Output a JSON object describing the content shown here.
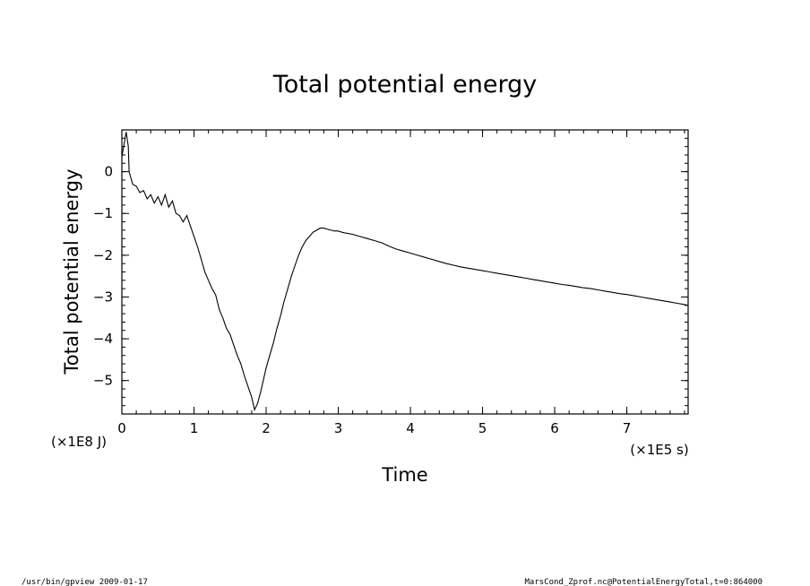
{
  "chart_data": {
    "type": "line",
    "title": "Total potential energy",
    "xlabel": "Time",
    "ylabel": "Total potential energy",
    "x_unit": "(×1E5 s)",
    "y_unit": "(×1E8 J)",
    "xlim": [
      0,
      7.85
    ],
    "ylim": [
      -5.8,
      1.0
    ],
    "x_ticks": [
      0,
      1,
      2,
      3,
      4,
      5,
      6,
      7
    ],
    "y_ticks": [
      0,
      -1,
      -2,
      -3,
      -4,
      -5
    ],
    "x_minor_step": 0.2,
    "y_minor_step": 0.2,
    "grid": false,
    "series": [
      {
        "color": "#000000",
        "x": [
          0.0,
          0.04,
          0.06,
          0.09,
          0.1,
          0.15,
          0.2,
          0.25,
          0.3,
          0.35,
          0.4,
          0.45,
          0.5,
          0.55,
          0.6,
          0.65,
          0.7,
          0.75,
          0.8,
          0.85,
          0.9,
          0.95,
          1.0,
          1.05,
          1.1,
          1.15,
          1.2,
          1.25,
          1.3,
          1.35,
          1.4,
          1.45,
          1.5,
          1.55,
          1.6,
          1.65,
          1.7,
          1.75,
          1.8,
          1.84,
          1.88,
          1.92,
          1.96,
          2.0,
          2.05,
          2.1,
          2.15,
          2.2,
          2.25,
          2.3,
          2.35,
          2.4,
          2.45,
          2.5,
          2.55,
          2.6,
          2.65,
          2.7,
          2.75,
          2.8,
          2.85,
          2.9,
          2.95,
          3.0,
          3.05,
          3.1,
          3.2,
          3.3,
          3.4,
          3.5,
          3.6,
          3.7,
          3.8,
          3.9,
          4.0,
          4.1,
          4.2,
          4.3,
          4.4,
          4.5,
          4.6,
          4.7,
          4.8,
          4.9,
          5.0,
          5.1,
          5.2,
          5.3,
          5.4,
          5.5,
          5.6,
          5.7,
          5.8,
          5.9,
          6.0,
          6.1,
          6.2,
          6.3,
          6.4,
          6.5,
          6.6,
          6.7,
          6.8,
          6.9,
          7.0,
          7.1,
          7.2,
          7.3,
          7.4,
          7.5,
          7.6,
          7.7,
          7.8,
          7.85
        ],
        "y": [
          0.35,
          0.75,
          0.95,
          0.6,
          0.0,
          -0.3,
          -0.35,
          -0.5,
          -0.45,
          -0.65,
          -0.55,
          -0.75,
          -0.6,
          -0.8,
          -0.55,
          -0.85,
          -0.7,
          -1.0,
          -1.05,
          -1.2,
          -1.05,
          -1.3,
          -1.55,
          -1.8,
          -2.1,
          -2.4,
          -2.6,
          -2.8,
          -2.95,
          -3.3,
          -3.5,
          -3.75,
          -3.9,
          -4.15,
          -4.4,
          -4.6,
          -4.9,
          -5.15,
          -5.4,
          -5.7,
          -5.55,
          -5.3,
          -5.0,
          -4.7,
          -4.4,
          -4.1,
          -3.75,
          -3.45,
          -3.1,
          -2.8,
          -2.5,
          -2.25,
          -2.0,
          -1.8,
          -1.65,
          -1.55,
          -1.45,
          -1.4,
          -1.35,
          -1.35,
          -1.38,
          -1.4,
          -1.42,
          -1.42,
          -1.45,
          -1.47,
          -1.5,
          -1.55,
          -1.6,
          -1.65,
          -1.7,
          -1.78,
          -1.85,
          -1.9,
          -1.95,
          -2.0,
          -2.05,
          -2.1,
          -2.15,
          -2.2,
          -2.24,
          -2.28,
          -2.31,
          -2.34,
          -2.37,
          -2.4,
          -2.43,
          -2.46,
          -2.49,
          -2.52,
          -2.55,
          -2.58,
          -2.61,
          -2.64,
          -2.67,
          -2.7,
          -2.72,
          -2.75,
          -2.78,
          -2.8,
          -2.83,
          -2.86,
          -2.89,
          -2.92,
          -2.94,
          -2.97,
          -3.0,
          -3.03,
          -3.06,
          -3.09,
          -3.12,
          -3.15,
          -3.18,
          -3.2
        ]
      }
    ]
  },
  "footer": {
    "left": "/usr/bin/gpview  2009-01-17",
    "right": "MarsCond_Zprof.nc@PotentialEnergyTotal,t=0:864000"
  }
}
